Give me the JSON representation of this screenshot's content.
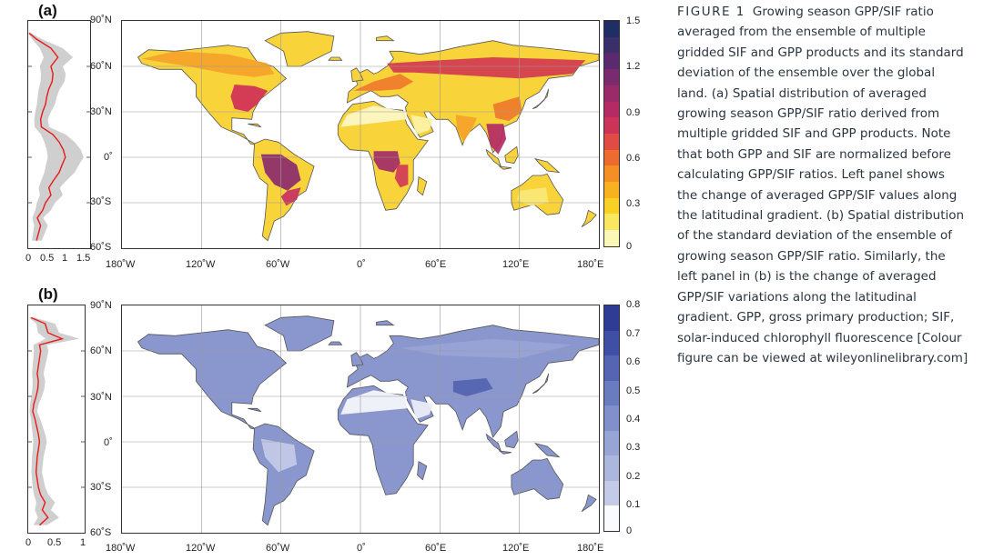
{
  "panels": [
    {
      "label": "(a)",
      "lat_plot": {
        "x_ticks": [
          "0",
          "0.5",
          "1",
          "1.5"
        ],
        "x_max": 1.5,
        "profile": [
          [
            82,
            0.02
          ],
          [
            78,
            0.2
          ],
          [
            72,
            0.55
          ],
          [
            66,
            0.72
          ],
          [
            60,
            0.55
          ],
          [
            55,
            0.6
          ],
          [
            50,
            0.58
          ],
          [
            45,
            0.5
          ],
          [
            40,
            0.45
          ],
          [
            35,
            0.42
          ],
          [
            30,
            0.35
          ],
          [
            25,
            0.3
          ],
          [
            20,
            0.32
          ],
          [
            15,
            0.6
          ],
          [
            10,
            0.75
          ],
          [
            5,
            0.85
          ],
          [
            0,
            0.9
          ],
          [
            -5,
            0.82
          ],
          [
            -10,
            0.75
          ],
          [
            -15,
            0.62
          ],
          [
            -20,
            0.5
          ],
          [
            -25,
            0.55
          ],
          [
            -30,
            0.42
          ],
          [
            -35,
            0.35
          ],
          [
            -40,
            0.22
          ],
          [
            -45,
            0.3
          ],
          [
            -50,
            0.25
          ],
          [
            -55,
            0.2
          ]
        ]
      },
      "lat_ticks": [
        "90˚N",
        "60˚N",
        "30˚N",
        "0˚",
        "30˚S",
        "60˚S"
      ],
      "lon_ticks": [
        "180˚W",
        "120˚W",
        "60˚W",
        "0˚",
        "60˚E",
        "120˚E",
        "180˚E"
      ],
      "colorbar": {
        "labels": [
          "1.5",
          "1.2",
          "0.9",
          "0.6",
          "0.3",
          "0"
        ],
        "colors": [
          "#1e2f66",
          "#3a2e6b",
          "#5b2a6e",
          "#7a2a6f",
          "#9b2a6b",
          "#b52a64",
          "#cc3356",
          "#e04b43",
          "#ee6b30",
          "#f58f25",
          "#f8b21f",
          "#f9d125",
          "#fae760",
          "#fcf7b5"
        ]
      }
    },
    {
      "label": "(b)",
      "lat_plot": {
        "x_ticks": [
          "0",
          "0.5",
          "1"
        ],
        "x_max": 1.0,
        "profile": [
          [
            82,
            0.05
          ],
          [
            78,
            0.3
          ],
          [
            72,
            0.35
          ],
          [
            68,
            0.6
          ],
          [
            64,
            0.2
          ],
          [
            60,
            0.22
          ],
          [
            55,
            0.2
          ],
          [
            50,
            0.18
          ],
          [
            45,
            0.16
          ],
          [
            40,
            0.18
          ],
          [
            35,
            0.17
          ],
          [
            30,
            0.14
          ],
          [
            25,
            0.1
          ],
          [
            20,
            0.08
          ],
          [
            15,
            0.12
          ],
          [
            10,
            0.15
          ],
          [
            5,
            0.18
          ],
          [
            0,
            0.2
          ],
          [
            -5,
            0.18
          ],
          [
            -10,
            0.16
          ],
          [
            -15,
            0.15
          ],
          [
            -20,
            0.14
          ],
          [
            -25,
            0.16
          ],
          [
            -30,
            0.18
          ],
          [
            -35,
            0.22
          ],
          [
            -40,
            0.3
          ],
          [
            -45,
            0.25
          ],
          [
            -50,
            0.35
          ],
          [
            -55,
            0.2
          ]
        ]
      },
      "lat_ticks": [
        "90˚N",
        "60˚N",
        "30˚N",
        "0˚",
        "30˚S",
        "60˚S"
      ],
      "lon_ticks": [
        "180˚W",
        "120˚W",
        "60˚W",
        "0˚",
        "60˚E",
        "120˚E",
        "180˚E"
      ],
      "colorbar": {
        "labels": [
          "0.8",
          "0.7",
          "0.6",
          "0.5",
          "0.4",
          "0.3",
          "0.2",
          "0.1",
          "0"
        ],
        "colors": [
          "#2f3c96",
          "#3f4fa6",
          "#5565b4",
          "#6a7cc0",
          "#8190cb",
          "#97a4d5",
          "#adb7de",
          "#c4cbe8",
          "#fafbff"
        ]
      }
    }
  ],
  "caption": {
    "figure_label": "FIGURE 1",
    "text": "Growing season GPP/SIF ratio averaged from the ensemble of multiple gridded SIF and GPP products and its standard deviation of the ensemble over the global land. (a) Spatial distribution of averaged growing season GPP/SIF ratio derived from multiple gridded SIF and GPP products. Note that both GPP and SIF are normalized before calculating GPP/SIF ratios. Left panel shows the change of averaged GPP/SIF values along the latitudinal gradient. (b) Spatial distribution of the standard deviation of the ensemble of growing season GPP/SIF ratio. Similarly, the left panel in (b) is the change of averaged GPP/SIF variations along the latitudinal gradient. GPP, gross primary production; SIF, solar-induced chlorophyll fluorescence [Colour figure can be viewed at wileyonlinelibrary.com]"
  }
}
